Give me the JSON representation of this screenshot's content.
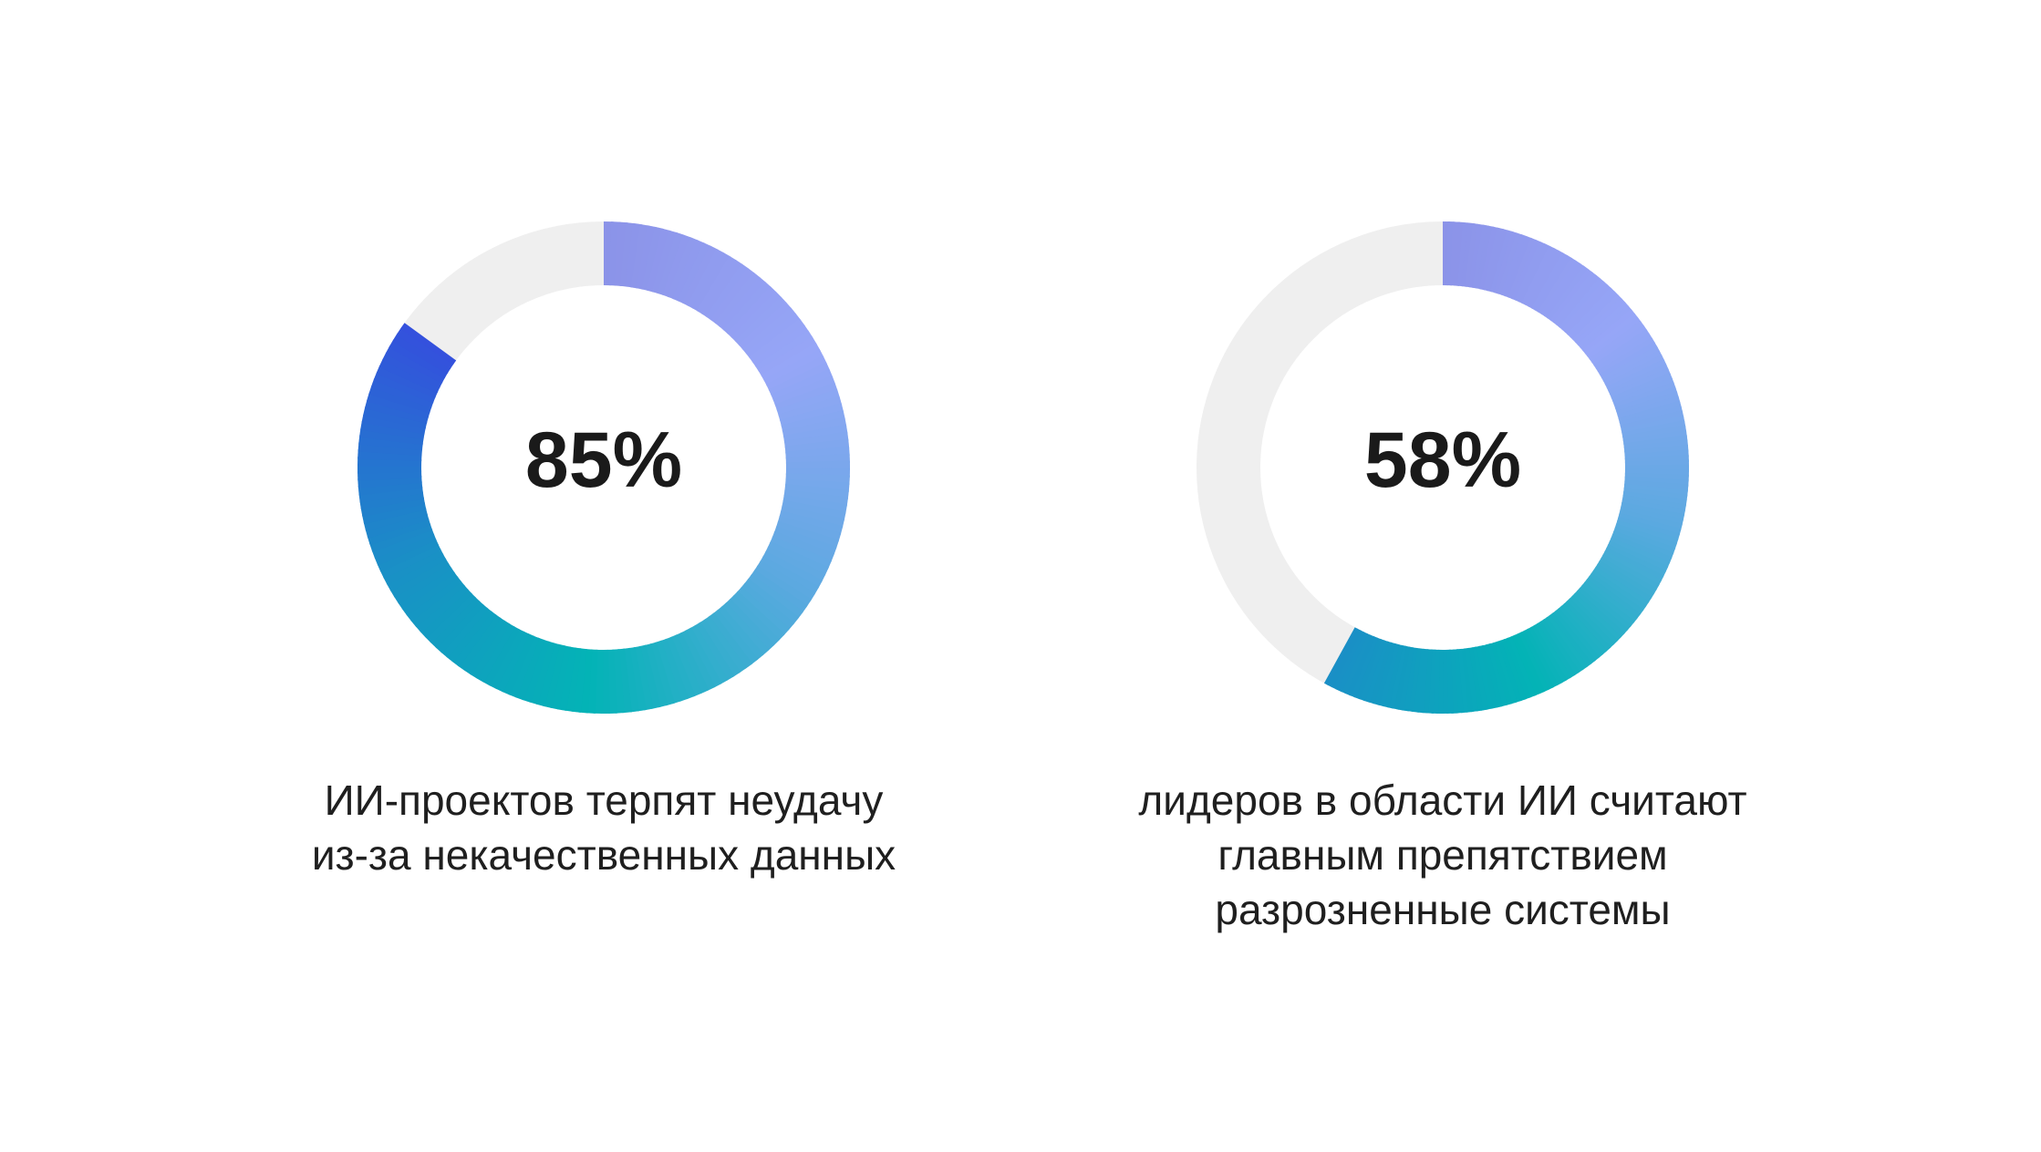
{
  "chart_data": [
    {
      "type": "pie",
      "style": "donut",
      "value": 85,
      "label": "85%",
      "caption": [
        "ИИ-проектов терпят неудачу",
        "из-за некачественных данных"
      ],
      "colors": {
        "track": "#efefef",
        "gradient": [
          "#8b93e8",
          "#96a6f7",
          "#5ba9e0",
          "#03b3b6",
          "#1a8fc6",
          "#3450dd"
        ]
      }
    },
    {
      "type": "pie",
      "style": "donut",
      "value": 58,
      "label": "58%",
      "caption": [
        "лидеров в области ИИ считают",
        "главным препятствием",
        "разрозненные системы"
      ],
      "colors": {
        "track": "#efefef",
        "gradient": [
          "#8b93e8",
          "#96a6f7",
          "#5ba9e0",
          "#03b3b6",
          "#1a8fc6"
        ]
      }
    }
  ]
}
